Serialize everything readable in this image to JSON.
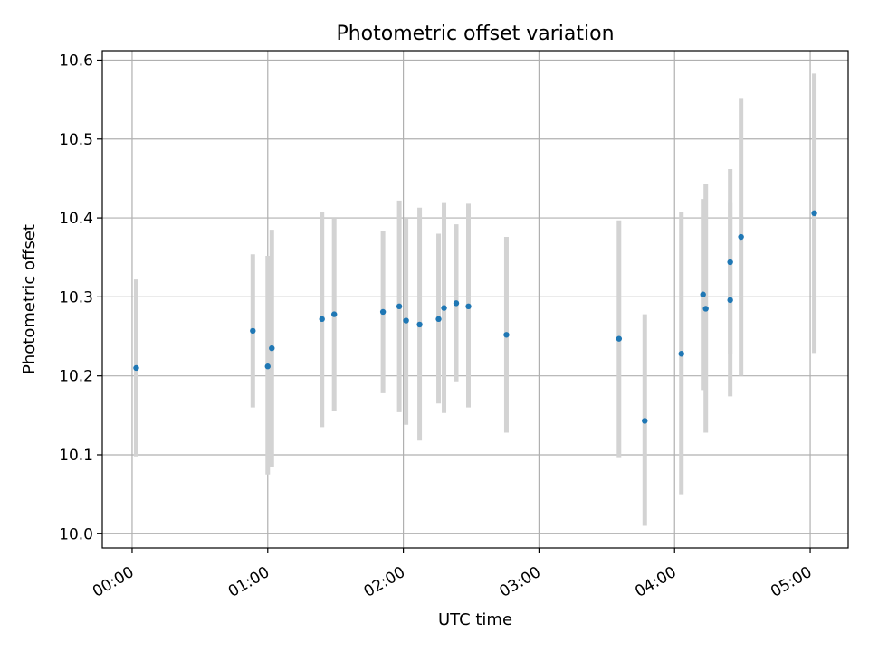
{
  "chart_data": {
    "type": "scatter",
    "title": "Photometric offset variation",
    "xlabel": "UTC time",
    "ylabel": "Photometric offset",
    "x_unit": "hours UTC",
    "xlim": [
      -0.22,
      5.28
    ],
    "ylim": [
      9.982,
      10.612
    ],
    "xticks": [
      {
        "value": 0,
        "label": "00:00"
      },
      {
        "value": 1,
        "label": "01:00"
      },
      {
        "value": 2,
        "label": "02:00"
      },
      {
        "value": 3,
        "label": "03:00"
      },
      {
        "value": 4,
        "label": "04:00"
      },
      {
        "value": 5,
        "label": "05:00"
      }
    ],
    "yticks": [
      {
        "value": 10.0,
        "label": "10.0"
      },
      {
        "value": 10.1,
        "label": "10.1"
      },
      {
        "value": 10.2,
        "label": "10.2"
      },
      {
        "value": 10.3,
        "label": "10.3"
      },
      {
        "value": 10.4,
        "label": "10.4"
      },
      {
        "value": 10.5,
        "label": "10.5"
      },
      {
        "value": 10.6,
        "label": "10.6"
      }
    ],
    "grid": true,
    "colors": {
      "marker": "#1f77b4",
      "errorbar": "#d3d3d3",
      "grid": "#b0b0b0",
      "axes": "#000000"
    },
    "points": [
      {
        "x": 0.03,
        "y": 10.21,
        "lo": 10.098,
        "hi": 10.322
      },
      {
        "x": 0.89,
        "y": 10.257,
        "lo": 10.16,
        "hi": 10.354
      },
      {
        "x": 1.0,
        "y": 10.212,
        "lo": 10.075,
        "hi": 10.352
      },
      {
        "x": 1.03,
        "y": 10.235,
        "lo": 10.085,
        "hi": 10.385
      },
      {
        "x": 1.4,
        "y": 10.272,
        "lo": 10.135,
        "hi": 10.408
      },
      {
        "x": 1.49,
        "y": 10.278,
        "lo": 10.155,
        "hi": 10.4
      },
      {
        "x": 1.85,
        "y": 10.281,
        "lo": 10.178,
        "hi": 10.384
      },
      {
        "x": 1.97,
        "y": 10.288,
        "lo": 10.154,
        "hi": 10.422
      },
      {
        "x": 2.02,
        "y": 10.27,
        "lo": 10.138,
        "hi": 10.4
      },
      {
        "x": 2.12,
        "y": 10.265,
        "lo": 10.118,
        "hi": 10.413
      },
      {
        "x": 2.26,
        "y": 10.272,
        "lo": 10.165,
        "hi": 10.38
      },
      {
        "x": 2.3,
        "y": 10.286,
        "lo": 10.153,
        "hi": 10.42
      },
      {
        "x": 2.39,
        "y": 10.292,
        "lo": 10.193,
        "hi": 10.392
      },
      {
        "x": 2.48,
        "y": 10.288,
        "lo": 10.16,
        "hi": 10.418
      },
      {
        "x": 2.76,
        "y": 10.252,
        "lo": 10.128,
        "hi": 10.376
      },
      {
        "x": 3.59,
        "y": 10.247,
        "lo": 10.097,
        "hi": 10.397
      },
      {
        "x": 3.78,
        "y": 10.143,
        "lo": 10.01,
        "hi": 10.278
      },
      {
        "x": 4.05,
        "y": 10.228,
        "lo": 10.05,
        "hi": 10.408
      },
      {
        "x": 4.21,
        "y": 10.303,
        "lo": 10.182,
        "hi": 10.424
      },
      {
        "x": 4.23,
        "y": 10.285,
        "lo": 10.128,
        "hi": 10.443
      },
      {
        "x": 4.41,
        "y": 10.296,
        "lo": 10.174,
        "hi": 10.42
      },
      {
        "x": 4.41,
        "y": 10.344,
        "lo": 10.228,
        "hi": 10.462
      },
      {
        "x": 4.49,
        "y": 10.376,
        "lo": 10.2,
        "hi": 10.552
      },
      {
        "x": 5.03,
        "y": 10.406,
        "lo": 10.229,
        "hi": 10.583
      }
    ]
  }
}
